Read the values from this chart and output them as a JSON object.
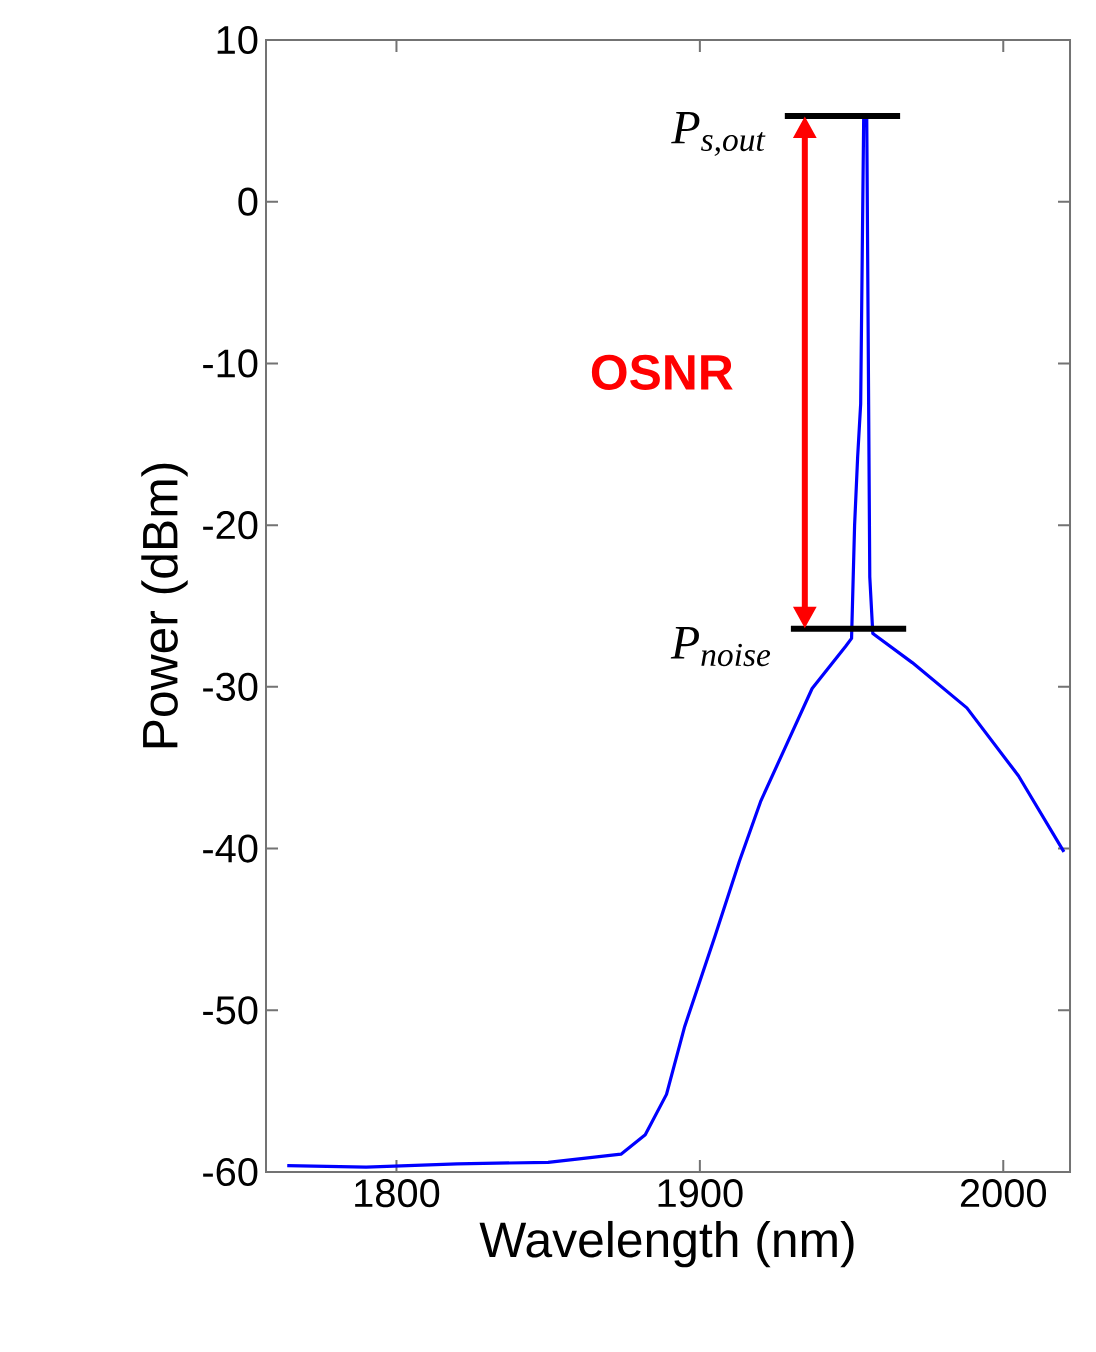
{
  "chart_data": {
    "type": "line",
    "xlabel": "Wavelength (nm)",
    "ylabel": "Power (dBm)",
    "xlim": [
      1757,
      2022
    ],
    "ylim": [
      -60,
      10
    ],
    "xticks": [
      1800,
      1900,
      2000
    ],
    "yticks": [
      -60,
      -50,
      -40,
      -30,
      -20,
      -10,
      0,
      10
    ],
    "series": [
      {
        "color": "#0000ff",
        "x": [
          1764,
          1790,
          1820,
          1850,
          1874,
          1882,
          1889,
          1895,
          1905,
          1913,
          1920,
          1928,
          1937,
          1948,
          1950,
          1951,
          1952,
          1953,
          1954,
          1955,
          1956,
          1957,
          1970,
          1988,
          2005,
          2020
        ],
        "values": [
          -59.6,
          -59.7,
          -59.5,
          -59.4,
          -58.9,
          -57.7,
          -55.2,
          -51.0,
          -45.4,
          -40.8,
          -37.1,
          -33.8,
          -30.1,
          -27.5,
          -27.0,
          -20.0,
          -15.8,
          -12.5,
          5.3,
          5.3,
          -23.2,
          -26.7,
          -28.5,
          -31.3,
          -35.5,
          -40.2
        ]
      },
      {
        "type": "line",
        "color": "#000000",
        "x": [
          1928,
          1966
        ],
        "values": [
          5.3,
          5.3
        ]
      },
      {
        "type": "line",
        "color": "#000000",
        "x": [
          1930,
          1968
        ],
        "values": [
          -26.4,
          -26.4
        ]
      }
    ],
    "annotations": [
      {
        "text": "P$_{s,out}$",
        "x": 1928,
        "y": 5.3
      },
      {
        "text": "P$_{noise}$",
        "x": 1930,
        "y": -26.4
      },
      "OSNR"
    ]
  }
}
